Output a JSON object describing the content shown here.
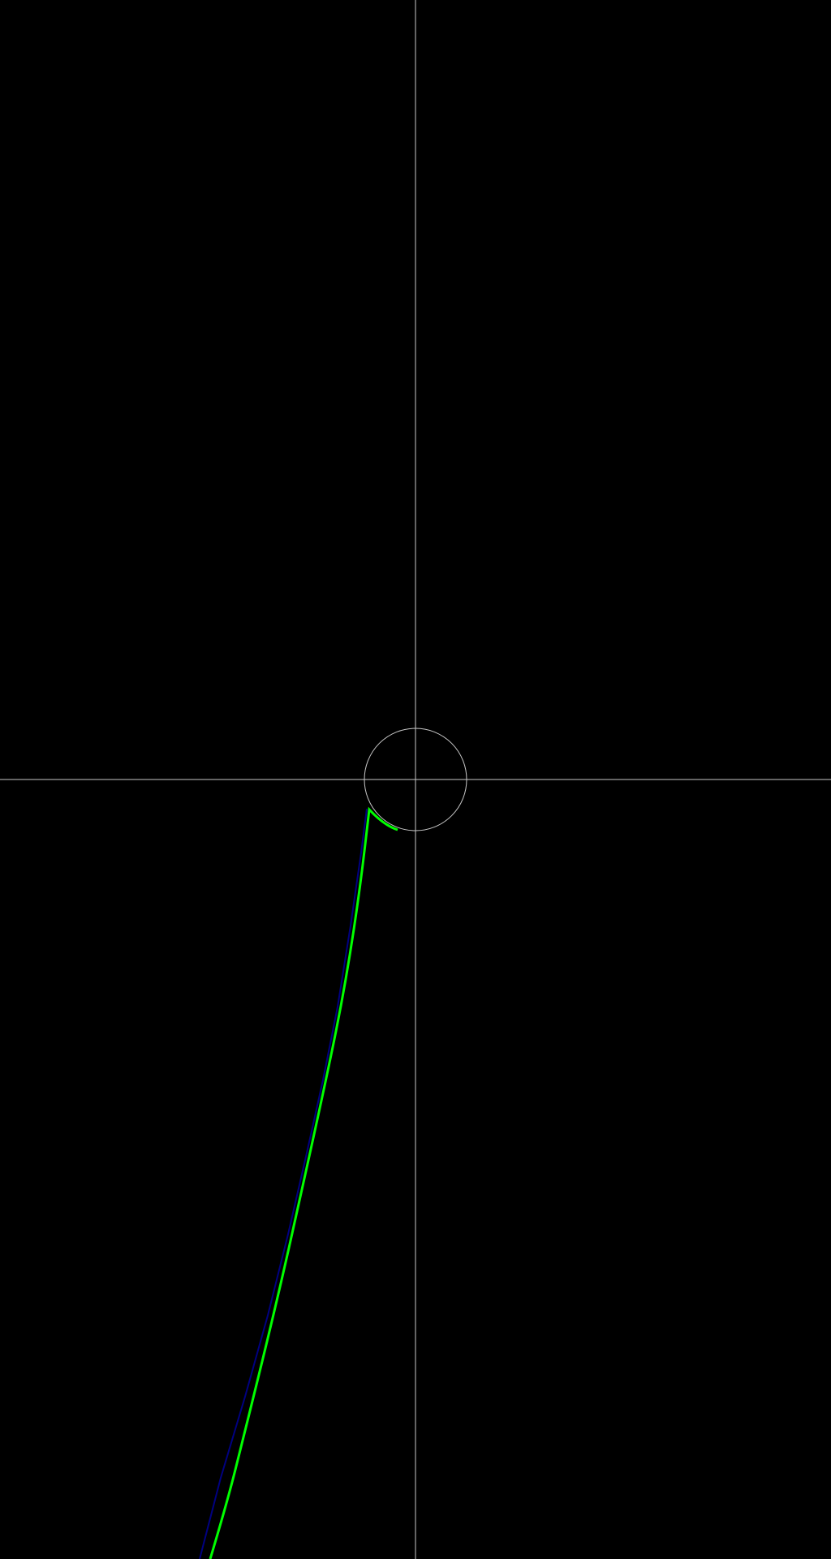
{
  "colors": {
    "background": "#000000",
    "axes": "#c8c8c8",
    "unit_circle": "#c8c8c8",
    "trajectory": "#00ff00",
    "reference_path": "#000080"
  }
}
